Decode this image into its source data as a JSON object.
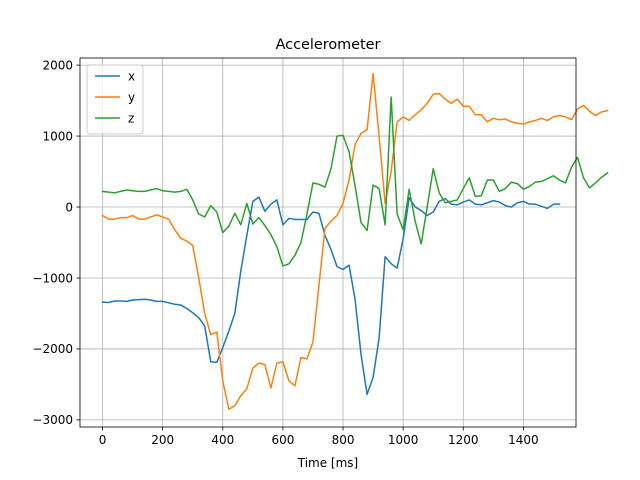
{
  "chart_data": {
    "type": "line",
    "title": "Accelerometer",
    "xlabel": "Time [ms]",
    "ylabel": "",
    "xlim": [
      -75,
      1575
    ],
    "ylim": [
      -3100,
      2100
    ],
    "xticks": [
      0,
      200,
      400,
      600,
      800,
      1000,
      1200,
      1400
    ],
    "yticks": [
      -3000,
      -2000,
      -1000,
      0,
      1000,
      2000
    ],
    "ytick_labels": [
      "−3000",
      "−2000",
      "−1000",
      "0",
      "1000",
      "2000"
    ],
    "grid": true,
    "legend_placement": "upper-left",
    "series": [
      {
        "name": "x",
        "color": "#1f77b4",
        "points": [
          [
            0,
            -1340
          ],
          [
            20,
            -1345
          ],
          [
            40,
            -1325
          ],
          [
            60,
            -1325
          ],
          [
            80,
            -1330
          ],
          [
            100,
            -1310
          ],
          [
            120,
            -1305
          ],
          [
            140,
            -1300
          ],
          [
            160,
            -1310
          ],
          [
            180,
            -1330
          ],
          [
            200,
            -1330
          ],
          [
            220,
            -1350
          ],
          [
            240,
            -1370
          ],
          [
            260,
            -1380
          ],
          [
            280,
            -1430
          ],
          [
            300,
            -1490
          ],
          [
            320,
            -1560
          ],
          [
            340,
            -1680
          ],
          [
            360,
            -2180
          ],
          [
            380,
            -2190
          ],
          [
            400,
            -1980
          ],
          [
            420,
            -1750
          ],
          [
            440,
            -1500
          ],
          [
            460,
            -900
          ],
          [
            480,
            -400
          ],
          [
            500,
            80
          ],
          [
            520,
            140
          ],
          [
            540,
            -60
          ],
          [
            560,
            40
          ],
          [
            580,
            100
          ],
          [
            600,
            -250
          ],
          [
            620,
            -160
          ],
          [
            640,
            -175
          ],
          [
            660,
            -175
          ],
          [
            680,
            -175
          ],
          [
            700,
            -70
          ],
          [
            720,
            -90
          ],
          [
            740,
            -400
          ],
          [
            760,
            -600
          ],
          [
            780,
            -840
          ],
          [
            800,
            -880
          ],
          [
            820,
            -820
          ],
          [
            840,
            -1300
          ],
          [
            860,
            -2080
          ],
          [
            880,
            -2640
          ],
          [
            900,
            -2400
          ],
          [
            920,
            -1850
          ],
          [
            940,
            -700
          ],
          [
            960,
            -800
          ],
          [
            980,
            -860
          ],
          [
            1000,
            -450
          ],
          [
            1020,
            130
          ],
          [
            1040,
            0
          ],
          [
            1060,
            -50
          ],
          [
            1080,
            -120
          ],
          [
            1100,
            -70
          ],
          [
            1120,
            80
          ],
          [
            1140,
            120
          ],
          [
            1160,
            40
          ],
          [
            1180,
            30
          ],
          [
            1200,
            70
          ],
          [
            1220,
            100
          ],
          [
            1240,
            40
          ],
          [
            1260,
            30
          ],
          [
            1280,
            60
          ],
          [
            1300,
            90
          ],
          [
            1320,
            70
          ],
          [
            1340,
            20
          ],
          [
            1360,
            0
          ],
          [
            1380,
            60
          ],
          [
            1400,
            80
          ],
          [
            1420,
            40
          ],
          [
            1440,
            40
          ],
          [
            1460,
            10
          ],
          [
            1480,
            -20
          ],
          [
            1500,
            40
          ],
          [
            1520,
            40
          ]
        ]
      },
      {
        "name": "y",
        "color": "#ff7f0e",
        "points": [
          [
            0,
            -120
          ],
          [
            20,
            -170
          ],
          [
            40,
            -170
          ],
          [
            60,
            -150
          ],
          [
            80,
            -150
          ],
          [
            100,
            -120
          ],
          [
            120,
            -170
          ],
          [
            140,
            -170
          ],
          [
            160,
            -140
          ],
          [
            180,
            -110
          ],
          [
            200,
            -140
          ],
          [
            220,
            -170
          ],
          [
            240,
            -320
          ],
          [
            260,
            -440
          ],
          [
            280,
            -480
          ],
          [
            300,
            -540
          ],
          [
            320,
            -1000
          ],
          [
            340,
            -1500
          ],
          [
            360,
            -1800
          ],
          [
            380,
            -1760
          ],
          [
            400,
            -2450
          ],
          [
            420,
            -2850
          ],
          [
            440,
            -2800
          ],
          [
            460,
            -2660
          ],
          [
            480,
            -2560
          ],
          [
            500,
            -2270
          ],
          [
            520,
            -2200
          ],
          [
            540,
            -2220
          ],
          [
            560,
            -2550
          ],
          [
            580,
            -2200
          ],
          [
            600,
            -2180
          ],
          [
            620,
            -2450
          ],
          [
            640,
            -2520
          ],
          [
            660,
            -2120
          ],
          [
            680,
            -2140
          ],
          [
            700,
            -1900
          ],
          [
            720,
            -1100
          ],
          [
            740,
            -300
          ],
          [
            760,
            -200
          ],
          [
            780,
            -120
          ],
          [
            800,
            50
          ],
          [
            820,
            380
          ],
          [
            840,
            880
          ],
          [
            860,
            1040
          ],
          [
            880,
            1090
          ],
          [
            900,
            1880
          ],
          [
            920,
            1000
          ],
          [
            940,
            50
          ],
          [
            960,
            500
          ],
          [
            980,
            1200
          ],
          [
            1000,
            1270
          ],
          [
            1020,
            1220
          ],
          [
            1040,
            1300
          ],
          [
            1060,
            1370
          ],
          [
            1080,
            1460
          ],
          [
            1100,
            1590
          ],
          [
            1120,
            1600
          ],
          [
            1140,
            1520
          ],
          [
            1160,
            1460
          ],
          [
            1180,
            1520
          ],
          [
            1200,
            1420
          ],
          [
            1220,
            1420
          ],
          [
            1240,
            1300
          ],
          [
            1260,
            1300
          ],
          [
            1280,
            1200
          ],
          [
            1300,
            1250
          ],
          [
            1320,
            1230
          ],
          [
            1340,
            1240
          ],
          [
            1360,
            1200
          ],
          [
            1380,
            1180
          ],
          [
            1400,
            1170
          ],
          [
            1420,
            1200
          ],
          [
            1440,
            1220
          ],
          [
            1460,
            1250
          ],
          [
            1480,
            1220
          ],
          [
            1500,
            1270
          ],
          [
            1520,
            1290
          ],
          [
            1540,
            1270
          ],
          [
            1560,
            1230
          ],
          [
            1580,
            1380
          ],
          [
            1600,
            1430
          ],
          [
            1620,
            1350
          ],
          [
            1640,
            1290
          ],
          [
            1660,
            1340
          ],
          [
            1680,
            1360
          ]
        ]
      },
      {
        "name": "z",
        "color": "#2ca02c",
        "points": [
          [
            0,
            220
          ],
          [
            20,
            210
          ],
          [
            40,
            200
          ],
          [
            60,
            220
          ],
          [
            80,
            240
          ],
          [
            100,
            230
          ],
          [
            120,
            220
          ],
          [
            140,
            220
          ],
          [
            160,
            240
          ],
          [
            180,
            260
          ],
          [
            200,
            230
          ],
          [
            220,
            220
          ],
          [
            240,
            210
          ],
          [
            260,
            220
          ],
          [
            280,
            250
          ],
          [
            300,
            100
          ],
          [
            320,
            -100
          ],
          [
            340,
            -140
          ],
          [
            360,
            20
          ],
          [
            380,
            -70
          ],
          [
            400,
            -360
          ],
          [
            420,
            -270
          ],
          [
            440,
            -90
          ],
          [
            460,
            -250
          ],
          [
            480,
            50
          ],
          [
            500,
            -240
          ],
          [
            520,
            -150
          ],
          [
            540,
            -260
          ],
          [
            560,
            -390
          ],
          [
            580,
            -560
          ],
          [
            600,
            -830
          ],
          [
            620,
            -800
          ],
          [
            640,
            -680
          ],
          [
            660,
            -500
          ],
          [
            680,
            -100
          ],
          [
            700,
            340
          ],
          [
            720,
            320
          ],
          [
            740,
            280
          ],
          [
            760,
            540
          ],
          [
            780,
            1000
          ],
          [
            800,
            1010
          ],
          [
            820,
            780
          ],
          [
            840,
            300
          ],
          [
            860,
            -220
          ],
          [
            880,
            -330
          ],
          [
            900,
            310
          ],
          [
            920,
            260
          ],
          [
            940,
            -250
          ],
          [
            960,
            1550
          ],
          [
            980,
            -100
          ],
          [
            1000,
            -320
          ],
          [
            1020,
            250
          ],
          [
            1040,
            -200
          ],
          [
            1060,
            -520
          ],
          [
            1080,
            0
          ],
          [
            1100,
            540
          ],
          [
            1120,
            200
          ],
          [
            1140,
            60
          ],
          [
            1160,
            80
          ],
          [
            1180,
            100
          ],
          [
            1200,
            260
          ],
          [
            1220,
            410
          ],
          [
            1240,
            150
          ],
          [
            1260,
            160
          ],
          [
            1280,
            380
          ],
          [
            1300,
            380
          ],
          [
            1320,
            220
          ],
          [
            1340,
            260
          ],
          [
            1360,
            350
          ],
          [
            1380,
            330
          ],
          [
            1400,
            250
          ],
          [
            1420,
            290
          ],
          [
            1440,
            350
          ],
          [
            1460,
            360
          ],
          [
            1480,
            400
          ],
          [
            1500,
            440
          ],
          [
            1520,
            380
          ],
          [
            1540,
            340
          ],
          [
            1560,
            560
          ],
          [
            1580,
            700
          ],
          [
            1600,
            410
          ],
          [
            1620,
            270
          ],
          [
            1640,
            340
          ],
          [
            1660,
            420
          ],
          [
            1680,
            480
          ]
        ]
      }
    ]
  }
}
